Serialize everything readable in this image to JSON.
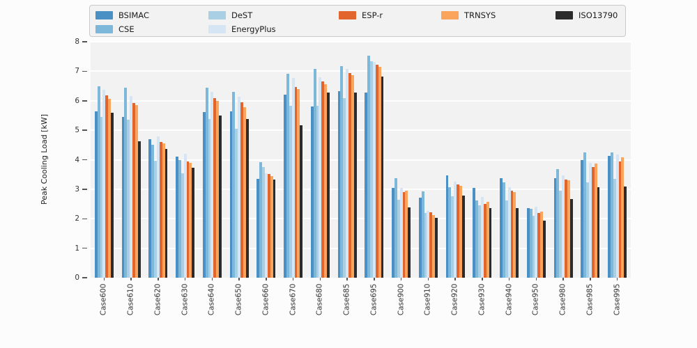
{
  "chart_data": {
    "type": "bar",
    "title": "",
    "ylabel": "Peak Cooling Load [kW]",
    "xlabel": "",
    "ylim": [
      0,
      8
    ],
    "yticks": [
      0,
      1,
      2,
      3,
      4,
      5,
      6,
      7,
      8
    ],
    "grid": true,
    "legend_position": "top",
    "plot_background": "#f2f2f2",
    "categories": [
      "Case600",
      "Case610",
      "Case620",
      "Case630",
      "Case640",
      "Case650",
      "Case660",
      "Case670",
      "Case680",
      "Case685",
      "Case695",
      "Case900",
      "Case910",
      "Case920",
      "Case930",
      "Case940",
      "Case950",
      "Case980",
      "Case985",
      "Case995"
    ],
    "series": [
      {
        "name": "BSIMAC",
        "color": "#4a90c4",
        "values": [
          5.65,
          5.45,
          4.7,
          4.1,
          5.62,
          5.63,
          3.34,
          6.21,
          5.8,
          6.33,
          6.28,
          3.05,
          2.71,
          3.47,
          3.04,
          3.37,
          2.37,
          3.38,
          3.99,
          4.13
        ]
      },
      {
        "name": "CSE",
        "color": "#7db8da",
        "values": [
          6.48,
          6.44,
          4.5,
          4.0,
          6.44,
          6.29,
          3.92,
          6.92,
          7.07,
          7.17,
          7.53,
          3.37,
          2.92,
          3.06,
          2.63,
          3.24,
          2.33,
          3.67,
          4.25,
          4.24
        ]
      },
      {
        "name": "DeST",
        "color": "#a9cfe5",
        "values": [
          5.45,
          5.35,
          3.97,
          3.54,
          5.37,
          5.05,
          3.75,
          5.84,
          5.83,
          6.08,
          7.35,
          2.65,
          2.2,
          2.77,
          2.45,
          2.62,
          2.1,
          2.94,
          3.24,
          3.36
        ]
      },
      {
        "name": "EnergyPlus",
        "color": "#d5e5f4",
        "values": [
          6.37,
          6.15,
          4.78,
          4.21,
          6.29,
          6.14,
          3.55,
          6.78,
          6.8,
          7.09,
          7.32,
          3.05,
          2.27,
          3.26,
          2.74,
          3.06,
          2.41,
          3.46,
          3.89,
          4.18
        ]
      },
      {
        "name": "ESP-r",
        "color": "#e2662c",
        "values": [
          6.19,
          5.93,
          4.6,
          3.95,
          6.1,
          5.94,
          3.51,
          6.47,
          6.65,
          6.95,
          7.23,
          2.9,
          2.22,
          3.16,
          2.5,
          2.95,
          2.19,
          3.33,
          3.75,
          3.95
        ]
      },
      {
        "name": "TRNSYS",
        "color": "#fba55c",
        "values": [
          6.07,
          5.86,
          4.56,
          3.89,
          6.0,
          5.78,
          3.45,
          6.4,
          6.56,
          6.87,
          7.15,
          2.95,
          2.12,
          3.12,
          2.57,
          2.9,
          2.24,
          3.3,
          3.87,
          4.08
        ]
      },
      {
        "name": "ISO13790",
        "color": "#2b2b2b",
        "values": [
          5.6,
          4.62,
          4.37,
          3.74,
          5.5,
          5.38,
          3.33,
          5.17,
          6.27,
          6.27,
          6.83,
          2.38,
          2.04,
          2.79,
          2.36,
          2.37,
          1.93,
          2.67,
          3.07,
          3.1
        ]
      }
    ]
  }
}
